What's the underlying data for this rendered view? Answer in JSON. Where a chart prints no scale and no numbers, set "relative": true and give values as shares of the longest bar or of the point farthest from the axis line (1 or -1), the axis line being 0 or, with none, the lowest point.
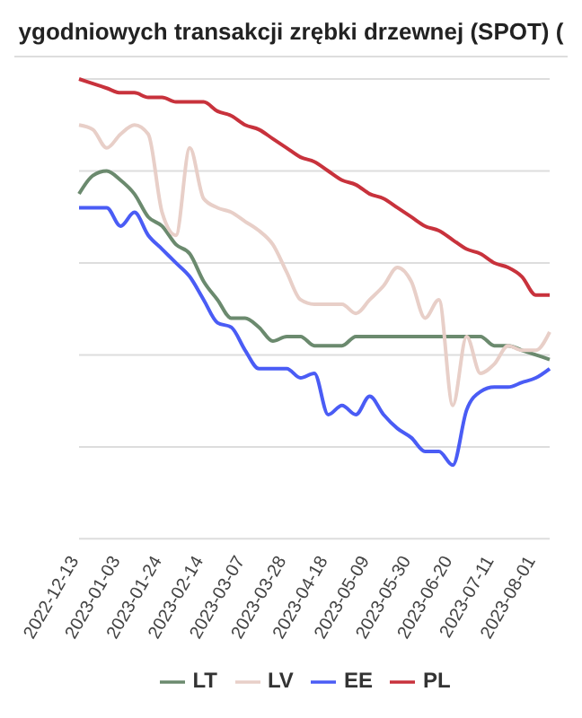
{
  "chart_data": {
    "type": "line",
    "title": "ygodniowych transakcji zrębki drzewnej (SPOT) (",
    "relative": true,
    "grid": "y",
    "legend": "bottom",
    "marker": "none",
    "line_style": "solid",
    "categories": [
      "2022-12-13",
      null,
      null,
      "2023-01-03",
      null,
      null,
      "2023-01-24",
      null,
      null,
      "2023-02-14",
      null,
      null,
      "2023-03-07",
      null,
      null,
      "2023-03-28",
      null,
      null,
      "2023-04-18",
      null,
      null,
      "2023-05-09",
      null,
      null,
      "2023-05-30",
      null,
      null,
      "2023-06-20",
      null,
      null,
      "2023-07-11",
      null,
      null,
      "2023-08-01",
      null
    ],
    "series": [
      {
        "name": "LT",
        "color": "#6b8a6e",
        "values": [
          0.75,
          0.79,
          0.8,
          0.78,
          0.75,
          0.7,
          0.68,
          0.64,
          0.62,
          0.56,
          0.52,
          0.48,
          0.48,
          0.46,
          0.43,
          0.44,
          0.44,
          0.42,
          0.42,
          0.42,
          0.44,
          0.44,
          0.44,
          0.44,
          0.44,
          0.44,
          0.44,
          0.44,
          0.44,
          0.44,
          0.42,
          0.42,
          0.41,
          0.4,
          0.39
        ]
      },
      {
        "name": "LV",
        "color": "#e8cfc8",
        "values": [
          0.9,
          0.89,
          0.85,
          0.88,
          0.9,
          0.88,
          0.71,
          0.66,
          0.85,
          0.74,
          0.72,
          0.71,
          0.69,
          0.67,
          0.64,
          0.58,
          0.52,
          0.51,
          0.51,
          0.51,
          0.49,
          0.52,
          0.55,
          0.59,
          0.56,
          0.48,
          0.52,
          0.29,
          0.44,
          0.36,
          0.38,
          0.42,
          0.41,
          0.41,
          0.45
        ]
      },
      {
        "name": "EE",
        "color": "#4a5cf5",
        "values": [
          0.72,
          0.72,
          0.72,
          0.68,
          0.71,
          0.66,
          0.63,
          0.6,
          0.57,
          0.52,
          0.47,
          0.46,
          0.41,
          0.37,
          0.37,
          0.37,
          0.35,
          0.36,
          0.27,
          0.29,
          0.27,
          0.31,
          0.27,
          0.24,
          0.22,
          0.19,
          0.19,
          0.16,
          0.28,
          0.32,
          0.33,
          0.33,
          0.34,
          0.35,
          0.37
        ]
      },
      {
        "name": "PL",
        "color": "#c8323c",
        "values": [
          1.0,
          0.99,
          0.98,
          0.97,
          0.97,
          0.96,
          0.96,
          0.95,
          0.95,
          0.95,
          0.93,
          0.92,
          0.9,
          0.89,
          0.87,
          0.85,
          0.83,
          0.82,
          0.8,
          0.78,
          0.77,
          0.75,
          0.74,
          0.72,
          0.7,
          0.68,
          0.67,
          0.65,
          0.63,
          0.62,
          0.6,
          0.59,
          0.57,
          0.53,
          0.53
        ]
      }
    ]
  }
}
